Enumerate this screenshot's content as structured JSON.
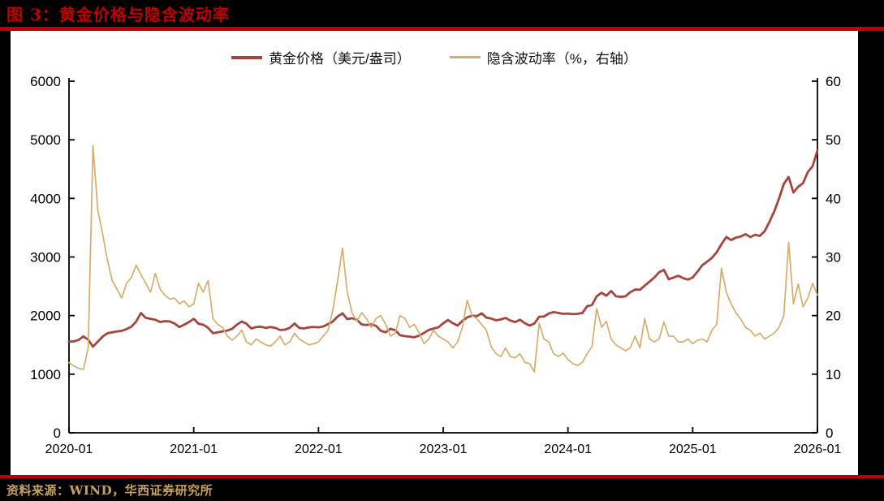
{
  "header": {
    "title": "图 3：黄金价格与隐含波动率"
  },
  "footer": {
    "source": "资料来源：WIND，华西证券研究所"
  },
  "colors": {
    "page_background": "#000000",
    "panel_background": "#ffffff",
    "title_red": "#c00000",
    "rule_red": "#c00000",
    "source_gold": "#c9a15e",
    "gold_line": "#a5463c",
    "vol_line": "#d5ae6b",
    "axis": "#000000"
  },
  "chart_data": {
    "type": "line",
    "title": "黄金价格与隐含波动率",
    "grid": false,
    "legend_position": "top-center",
    "x_tick_labels": [
      "2020-01",
      "2021-01",
      "2022-01",
      "2023-01",
      "2024-01",
      "2025-01",
      "2026-01"
    ],
    "x_range_years": [
      2020.0,
      2026.0
    ],
    "points_per_year": 26,
    "left_axis": {
      "range": [
        0,
        6000
      ],
      "ticks": [
        0,
        1000,
        2000,
        3000,
        4000,
        5000,
        6000
      ]
    },
    "right_axis": {
      "range": [
        0,
        60
      ],
      "ticks": [
        0,
        10,
        20,
        30,
        40,
        50,
        60
      ]
    },
    "legend": [
      {
        "label": "黄金价格（美元/盎司）",
        "color": "#a5463c"
      },
      {
        "label": "隐含波动率（%，右轴）",
        "color": "#d5ae6b"
      }
    ],
    "series": [
      {
        "name": "黄金价格（美元/盎司）",
        "axis": "left",
        "color": "#a5463c",
        "stroke_width": 2.8,
        "values": [
          1555,
          1560,
          1585,
          1645,
          1590,
          1470,
          1555,
          1640,
          1700,
          1715,
          1730,
          1740,
          1770,
          1810,
          1900,
          2045,
          1960,
          1945,
          1930,
          1890,
          1905,
          1900,
          1865,
          1805,
          1845,
          1890,
          1945,
          1860,
          1845,
          1790,
          1700,
          1715,
          1730,
          1745,
          1775,
          1845,
          1900,
          1860,
          1780,
          1805,
          1810,
          1790,
          1805,
          1790,
          1755,
          1760,
          1790,
          1865,
          1790,
          1780,
          1800,
          1805,
          1800,
          1815,
          1855,
          1900,
          1985,
          2040,
          1940,
          1955,
          1930,
          1850,
          1840,
          1850,
          1825,
          1740,
          1715,
          1775,
          1750,
          1665,
          1650,
          1640,
          1630,
          1660,
          1705,
          1755,
          1780,
          1800,
          1870,
          1925,
          1870,
          1830,
          1910,
          1970,
          2000,
          1990,
          2040,
          1965,
          1950,
          1920,
          1935,
          1960,
          1915,
          1890,
          1930,
          1870,
          1830,
          1865,
          1980,
          1985,
          2035,
          2060,
          2045,
          2030,
          2035,
          2025,
          2030,
          2045,
          2160,
          2180,
          2330,
          2390,
          2340,
          2420,
          2330,
          2320,
          2330,
          2400,
          2445,
          2440,
          2510,
          2580,
          2650,
          2740,
          2780,
          2620,
          2650,
          2680,
          2640,
          2615,
          2650,
          2750,
          2860,
          2920,
          2985,
          3080,
          3220,
          3340,
          3290,
          3330,
          3350,
          3390,
          3340,
          3380,
          3360,
          3440,
          3600,
          3780,
          4000,
          4250,
          4365,
          4100,
          4200,
          4260,
          4450,
          4550,
          4820
        ]
      },
      {
        "name": "隐含波动率（%，右轴）",
        "axis": "right",
        "color": "#d5ae6b",
        "stroke_width": 1.7,
        "values": [
          12.0,
          11.4,
          11.0,
          10.8,
          14.5,
          49.0,
          38.0,
          34.0,
          29.5,
          26.0,
          24.5,
          23.0,
          25.5,
          26.5,
          28.6,
          27.0,
          25.5,
          24.0,
          27.2,
          24.5,
          23.5,
          22.8,
          23.0,
          22.0,
          22.5,
          21.5,
          22.0,
          25.5,
          24.0,
          26.0,
          19.5,
          18.5,
          18.0,
          16.5,
          15.8,
          16.5,
          17.5,
          15.5,
          15.0,
          16.0,
          15.5,
          15.0,
          14.8,
          15.5,
          16.5,
          15.0,
          15.5,
          17.0,
          16.0,
          15.5,
          15.0,
          15.2,
          15.5,
          16.5,
          17.5,
          21.0,
          26.0,
          31.5,
          24.0,
          20.5,
          19.0,
          20.5,
          19.5,
          18.0,
          19.5,
          20.0,
          18.5,
          16.5,
          17.0,
          20.0,
          19.5,
          18.0,
          18.5,
          17.0,
          15.2,
          16.0,
          17.5,
          16.5,
          16.0,
          15.5,
          14.5,
          15.5,
          18.0,
          22.6,
          20.0,
          19.5,
          18.5,
          17.5,
          14.7,
          13.5,
          13.0,
          14.5,
          13.0,
          12.8,
          13.5,
          12.0,
          11.8,
          10.4,
          18.7,
          16.0,
          15.5,
          13.5,
          13.0,
          13.6,
          12.5,
          11.8,
          11.5,
          12.0,
          13.5,
          14.7,
          21.2,
          18.0,
          19.0,
          16.0,
          15.0,
          14.5,
          14.0,
          14.5,
          16.5,
          14.5,
          19.5,
          16.0,
          15.5,
          16.0,
          18.9,
          16.5,
          16.5,
          15.5,
          15.5,
          16.0,
          15.2,
          15.8,
          16.0,
          15.5,
          17.5,
          18.5,
          28.1,
          24.0,
          22.0,
          20.5,
          19.4,
          18.0,
          17.5,
          16.5,
          17.0,
          16.0,
          16.5,
          17.0,
          18.0,
          20.0,
          32.5,
          22.0,
          25.4,
          21.5,
          23.0,
          25.5,
          23.5
        ]
      }
    ]
  }
}
